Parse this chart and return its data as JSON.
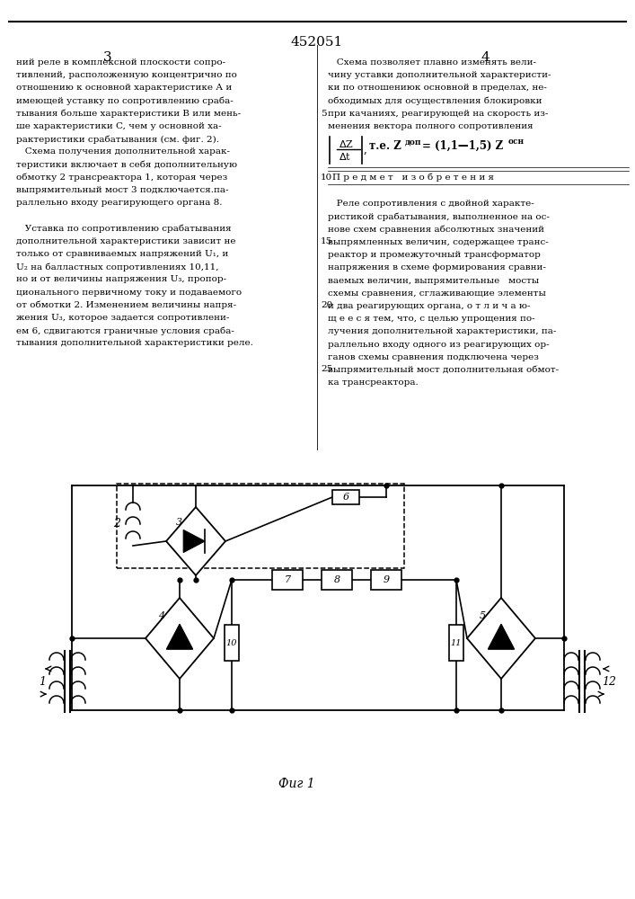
{
  "patent_number": "452051",
  "page_left": "3",
  "page_right": "4",
  "fig_label": "Фиг 1",
  "background_color": "#ffffff",
  "text_color": "#000000",
  "left_col_lines": [
    "ний реле в комплексной плоскости сопро-",
    "тивлений, расположенную концентрично по",
    "отношению к основной характеристике А и",
    "имеющей уставку по сопротивлению сраба-",
    "тывания больше характеристики B или мень-",
    "ше характеристики C, чем у основной ха-",
    "рактеристики срабатывания (см. фиг. 2).",
    "   Схема получения дополнительной харак-",
    "теристики включает в себя дополнительную",
    "обмотку 2 трансреактора 1, которая через",
    "выпрямительный мост 3 подключается.па-",
    "раллельно входу реагирующего органа 8.",
    "",
    "   Уставка по сопротивлению срабатывания",
    "дополнительной характеристики зависит не",
    "только от сравниваемых напряжений U₁, и",
    "U₂ на балластных сопротивлениях 10,11,",
    "но и от величины напряжения U₃, пропор-",
    "ционального первичному току и подаваемого",
    "от обмотки 2. Изменением величины напря-",
    "жения U₃, которое задается сопротивлени-",
    "ем 6, сдвигаются граничные условия сраба-",
    "тывания дополнительной характеристики реле."
  ],
  "right_col_lines": [
    "   Схема позволяет плавно изменять вели-",
    "чину уставки дополнительной характеристи-",
    "ки по отношениюк основной в пределах, не-",
    "обходимых для осуществления блокировки",
    "при качаниях, реагирующей на скорость из-",
    "менения вектора полного сопротивления",
    "",
    "   Реле сопротивления с двойной характе-",
    "ристикой срабатывания, выполненное на ос-",
    "нове схем сравнения абсолютных значений",
    "выпрямленных величин, содержащее транс-",
    "реактор и промежуточный трансформатор",
    "напряжения в схеме формирования сравни-",
    "ваемых величин, выпрямительные   мосты",
    "схемы сравнения, сглаживающие элементы",
    "и два реагирующих органа, о т л и ч а ю-",
    "щ е е с я тем, что, с целью упрощения по-",
    "лучения дополнительной характеристики, па-",
    "раллельно входу одного из реагирующих ор-",
    "ганов схемы сравнения подключена через",
    "выпрямительный мост дополнительная обмот-",
    "ка трансреактора."
  ]
}
